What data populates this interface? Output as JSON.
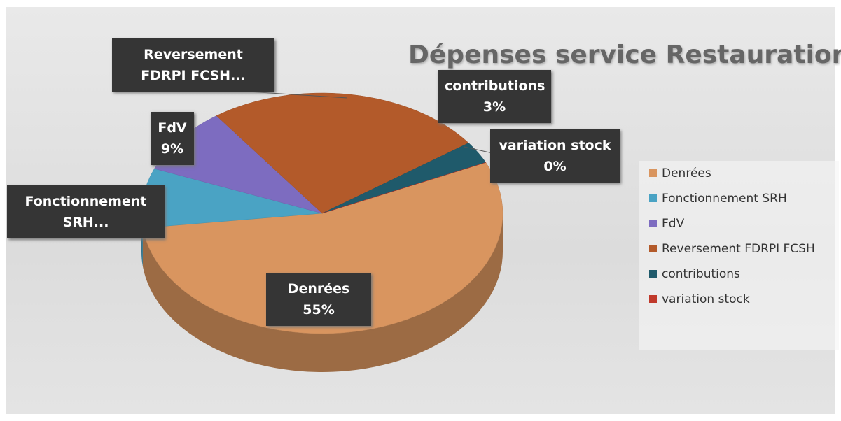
{
  "chart_data": {
    "type": "pie",
    "title": "Dépenses service Restauration",
    "categories": [
      "Denrées",
      "Fonctionnement SRH",
      "FdV",
      "Reversement FDRPI FCSH",
      "contributions",
      "variation stock"
    ],
    "values": [
      55,
      8,
      9,
      25,
      3,
      0
    ],
    "value_labels": [
      "55%",
      null,
      "9%",
      null,
      "3%",
      "0%"
    ],
    "data_labels": [
      "Denrées",
      "Fonctionnement SRH...",
      "FdV",
      "Reversement FDRPI FCSH...",
      "contributions",
      "variation stock"
    ],
    "colors": [
      "#d9955f",
      "#4aa3c4",
      "#7d6cc0",
      "#b35a2a",
      "#1f5a6b",
      "#c0392b"
    ],
    "legend": "right"
  }
}
